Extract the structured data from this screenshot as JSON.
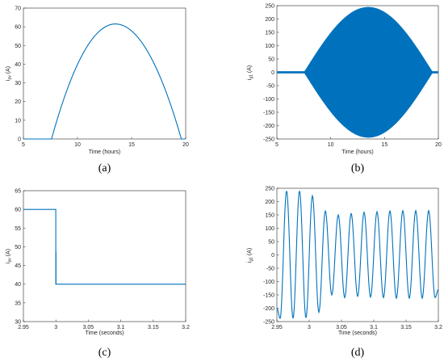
{
  "colors": {
    "line": "#0072bd",
    "axis": "#262626"
  },
  "chart_data": [
    {
      "id": "a",
      "type": "line",
      "caption": "(a)",
      "xlabel": "Time (hours)",
      "ylabel": "i_pv (A)",
      "ylabel_main": "i",
      "ylabel_sub": "pv",
      "ylabel_unit": " (A)",
      "xlim": [
        5,
        20
      ],
      "ylim": [
        0,
        70
      ],
      "xticks": [
        5,
        10,
        15,
        20
      ],
      "yticks": [
        0,
        10,
        20,
        30,
        40,
        50,
        60,
        70
      ],
      "series": [
        {
          "shape": "parabola",
          "x_start": 5,
          "x_rise": 7.6,
          "x_peak": 13.5,
          "x_fall": 19.6,
          "x_end": 20,
          "peak": 61.5
        }
      ]
    },
    {
      "id": "b",
      "type": "line",
      "caption": "(b)",
      "xlabel": "Time (hours)",
      "ylabel": "i_g1 (A)",
      "ylabel_main": "i",
      "ylabel_sub": "g1",
      "ylabel_unit": " (A)",
      "xlim": [
        5,
        20
      ],
      "ylim": [
        -250,
        250
      ],
      "xticks": [
        5,
        10,
        15,
        20
      ],
      "yticks": [
        -250,
        -200,
        -150,
        -100,
        -50,
        0,
        50,
        100,
        150,
        200,
        250
      ],
      "series": [
        {
          "shape": "envelope",
          "x_rise": 7.5,
          "x_peak": 13.5,
          "x_fall": 19.5,
          "peak": 245,
          "idle_band": 4
        }
      ]
    },
    {
      "id": "c",
      "type": "line",
      "caption": "(c)",
      "xlabel": "Time (seconds)",
      "ylabel": "i_pv (A)",
      "ylabel_main": "i",
      "ylabel_sub": "pv",
      "ylabel_unit": " (A)",
      "xlim": [
        2.95,
        3.2
      ],
      "ylim": [
        30,
        65
      ],
      "xticks": [
        2.95,
        3,
        3.05,
        3.1,
        3.15,
        3.2
      ],
      "yticks": [
        30,
        35,
        40,
        45,
        50,
        55,
        60,
        65
      ],
      "series": [
        {
          "x": [
            2.95,
            2.9999,
            2.9999,
            3.0001,
            3.0001,
            3.0002,
            3.0002,
            3.2
          ],
          "y": [
            60,
            60,
            40,
            40,
            48.5,
            48.5,
            40,
            40
          ]
        }
      ]
    },
    {
      "id": "d",
      "type": "line",
      "caption": "(d)",
      "xlabel": "Time (seconds)",
      "ylabel": "i_g1 (A)",
      "ylabel_main": "i",
      "ylabel_sub": "g1",
      "ylabel_unit": " (A)",
      "xlim": [
        2.95,
        3.2
      ],
      "ylim": [
        -250,
        250
      ],
      "xticks": [
        2.95,
        3,
        3.05,
        3.1,
        3.15,
        3.2
      ],
      "yticks": [
        -250,
        -200,
        -150,
        -100,
        -50,
        0,
        50,
        100,
        150,
        200,
        250
      ],
      "series": [
        {
          "x": [
            2.95,
            2.955,
            2.965,
            2.975,
            2.985,
            2.995,
            3.005,
            3.015,
            3.025,
            3.035,
            3.045,
            3.055,
            3.065,
            3.075,
            3.085,
            3.095,
            3.105,
            3.115,
            3.125,
            3.135,
            3.145,
            3.155,
            3.165,
            3.175,
            3.185,
            3.195,
            3.2
          ],
          "y": [
            -200,
            -238,
            240,
            -238,
            240,
            -236,
            222,
            -215,
            165,
            -150,
            150,
            -160,
            155,
            -155,
            160,
            -158,
            162,
            -160,
            165,
            -162,
            166,
            -162,
            166,
            -162,
            166,
            -160,
            -130
          ]
        }
      ]
    }
  ]
}
